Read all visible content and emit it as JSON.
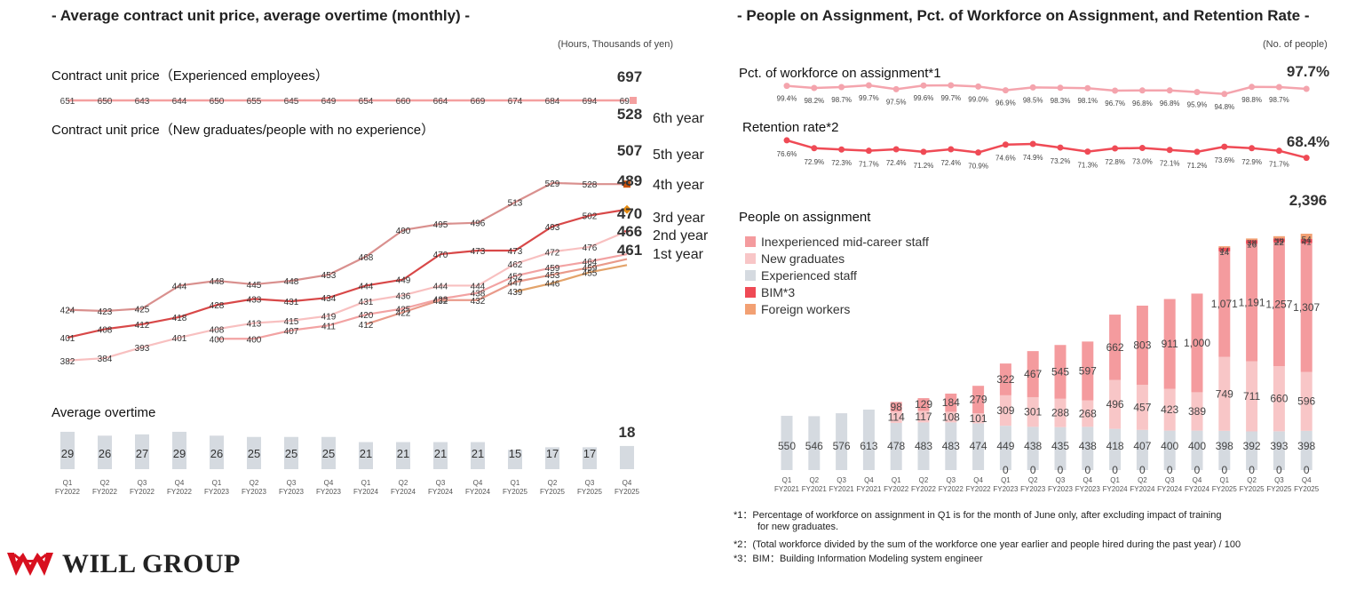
{
  "left": {
    "title": "- Average contract unit price, average overtime (monthly) -",
    "unit": "(Hours, Thousands of yen)",
    "experienced_label": "Contract unit price（Experienced employees）",
    "newgrad_label": "Contract unit price（New graduates/people with no experience）",
    "overtime_label": "Average overtime"
  },
  "right": {
    "title": "- People on Assignment, Pct. of Workforce on Assignment, and Retention Rate -",
    "unit": "(No. of people)",
    "pct_label": "Pct. of workforce on assignment*1",
    "retention_label": "Retention rate*2",
    "people_label": "People on assignment"
  },
  "notes": [
    "*1：Percentage of workforce on assignment in Q1 is for the month of June only, after excluding impact of training",
    "for new graduates.",
    "*2：(Total workforce divided by the sum of the workforce one year earlier and people hired during the past year) / 100",
    "*3：BIM：Building Information Modeling system engineer"
  ],
  "logo": {
    "text": "WILL GROUP",
    "icon": "will-group-emblem-icon"
  },
  "colors": {
    "experienced": "#f4a0a0",
    "year6": "#d9908e",
    "year5": "#d84848",
    "year4": "#f8c0c0",
    "year3": "#f2a2a2",
    "year2": "#e99a8a",
    "year1": "#e3a36a",
    "overtime": "#d5dae0",
    "pct": "#f4a4ad",
    "retention": "#ef4a55",
    "inexperienced_mid": "#f49b9e",
    "new_grads": "#f8c6c7",
    "experienced_staff": "#d5dae0",
    "bim": "#ef4a55",
    "foreign": "#f2a073",
    "logo": "#d8101f"
  },
  "chart_data": [
    {
      "type": "line",
      "id": "contract-unit-price",
      "categories": [
        "Q1\nFY2022",
        "Q2\nFY2022",
        "Q3\nFY2022",
        "Q4\nFY2022",
        "Q1\nFY2023",
        "Q2\nFY2023",
        "Q3\nFY2023",
        "Q4\nFY2023",
        "Q1\nFY2024",
        "Q2\nFY2024",
        "Q3\nFY2024",
        "Q4\nFY2024",
        "Q1\nFY2025",
        "Q2\nFY2025",
        "Q3\nFY2025",
        "Q4\nFY2025"
      ],
      "series": [
        {
          "name": "6th year",
          "values": [
            424,
            423,
            425,
            444,
            448,
            445,
            448,
            453,
            468,
            490,
            495,
            496,
            513,
            529,
            528,
            528
          ]
        },
        {
          "name": "5th year",
          "values": [
            401,
            408,
            412,
            418,
            428,
            433,
            431,
            434,
            444,
            449,
            470,
            473,
            473,
            493,
            502,
            507
          ]
        },
        {
          "name": "4th year",
          "values": [
            382,
            384,
            393,
            401,
            408,
            413,
            415,
            419,
            431,
            436,
            444,
            444,
            462,
            472,
            476,
            489
          ]
        },
        {
          "name": "3rd year",
          "values": [
            null,
            null,
            null,
            null,
            400,
            400,
            407,
            411,
            420,
            425,
            433,
            438,
            452,
            459,
            464,
            470
          ]
        },
        {
          "name": "2nd year",
          "values": [
            null,
            null,
            null,
            null,
            null,
            null,
            null,
            null,
            412,
            422,
            432,
            432,
            447,
            453,
            459,
            466
          ]
        },
        {
          "name": "1st year",
          "values": [
            null,
            null,
            null,
            null,
            null,
            null,
            null,
            null,
            null,
            null,
            null,
            null,
            439,
            446,
            455,
            461
          ]
        }
      ],
      "experienced": {
        "values": [
          651,
          650,
          643,
          644,
          650,
          655,
          645,
          649,
          654,
          660,
          664,
          669,
          674,
          684,
          694,
          697
        ]
      },
      "last_labels": [
        "697",
        "528",
        "507",
        "489",
        "470",
        "466",
        "461"
      ]
    },
    {
      "type": "bar",
      "id": "average-overtime",
      "values": [
        29,
        26,
        27,
        29,
        26,
        25,
        25,
        25,
        21,
        21,
        21,
        21,
        15,
        17,
        17,
        18
      ]
    },
    {
      "type": "line",
      "id": "pct-workforce-on-assignment",
      "values": [
        99.4,
        98.2,
        98.7,
        99.7,
        97.5,
        99.6,
        99.7,
        99.0,
        96.9,
        98.5,
        98.3,
        98.1,
        96.7,
        96.8,
        96.8,
        95.9,
        94.8,
        98.8,
        98.7,
        97.7
      ],
      "labels": [
        "99.4%",
        "98.2%",
        "98.7%",
        "99.7%",
        "97.5%",
        "99.6%",
        "99.7%",
        "99.0%",
        "96.9%",
        "98.5%",
        "98.3%",
        "98.1%",
        "96.7%",
        "96.8%",
        "96.8%",
        "95.9%",
        "94.8%",
        "98.8%",
        "98.7%",
        "97.7%"
      ]
    },
    {
      "type": "line",
      "id": "retention-rate",
      "values": [
        76.6,
        72.9,
        72.3,
        71.7,
        72.4,
        71.2,
        72.4,
        70.9,
        74.6,
        74.9,
        73.2,
        71.3,
        72.8,
        73.0,
        72.1,
        71.2,
        73.6,
        72.9,
        71.7,
        68.4
      ],
      "labels": [
        "76.6%",
        "72.9%",
        "72.3%",
        "71.7%",
        "72.4%",
        "71.2%",
        "72.4%",
        "70.9%",
        "74.6%",
        "74.9%",
        "73.2%",
        "71.3%",
        "72.8%",
        "73.0%",
        "72.1%",
        "71.2%",
        "73.6%",
        "72.9%",
        "71.7%",
        "68.4%"
      ]
    },
    {
      "type": "bar",
      "id": "people-on-assignment",
      "stacked": true,
      "categories": [
        "Q1\nFY2021",
        "Q2\nFY2021",
        "Q3\nFY2021",
        "Q4\nFY2021",
        "Q1\nFY2022",
        "Q2\nFY2022",
        "Q3\nFY2022",
        "Q4\nFY2022",
        "Q1\nFY2023",
        "Q2\nFY2023",
        "Q3\nFY2023",
        "Q4\nFY2023",
        "Q1\nFY2024",
        "Q2\nFY2024",
        "Q3\nFY2024",
        "Q4\nFY2024",
        "Q1\nFY2025",
        "Q2\nFY2025",
        "Q3\nFY2025",
        "Q4\nFY2025"
      ],
      "series": [
        {
          "name": "Experienced staff",
          "values": [
            550,
            546,
            576,
            613,
            478,
            483,
            483,
            474,
            449,
            438,
            435,
            438,
            418,
            407,
            400,
            400,
            398,
            392,
            393,
            398
          ]
        },
        {
          "name": "Foreign workers",
          "values": [
            null,
            null,
            null,
            null,
            null,
            null,
            null,
            null,
            0,
            0,
            0,
            0,
            0,
            0,
            0,
            0,
            0,
            0,
            0,
            0
          ]
        },
        {
          "name": "New graduates",
          "values": [
            null,
            null,
            null,
            null,
            114,
            117,
            108,
            101,
            309,
            301,
            288,
            268,
            496,
            457,
            423,
            389,
            749,
            711,
            660,
            596
          ]
        },
        {
          "name": "Inexperienced mid-career staff",
          "values": [
            null,
            null,
            null,
            null,
            98,
            129,
            184,
            279,
            322,
            467,
            545,
            597,
            662,
            803,
            911,
            1000,
            1071,
            1191,
            1257,
            1307
          ]
        },
        {
          "name": "BIM*3",
          "values": [
            null,
            null,
            null,
            null,
            null,
            null,
            null,
            null,
            null,
            null,
            null,
            null,
            null,
            null,
            null,
            null,
            37,
            38,
            39,
            41
          ]
        },
        {
          "name": "Foreign workers (top)",
          "values": [
            null,
            null,
            null,
            null,
            null,
            null,
            null,
            null,
            null,
            null,
            null,
            null,
            null,
            null,
            null,
            null,
            14,
            16,
            22,
            54
          ]
        }
      ],
      "labels": {
        "Experienced staff": [
          "550",
          "546",
          "576",
          "613",
          "478",
          "483",
          "483",
          "474",
          "449",
          "438",
          "435",
          "438",
          "418",
          "407",
          "400",
          "400",
          "398",
          "392",
          "393",
          "398"
        ],
        "Foreign workers": [
          "",
          "",
          "",
          "",
          "",
          "",
          "",
          "",
          "0",
          "0",
          "0",
          "0",
          "0",
          "0",
          "0",
          "0",
          "0",
          "0",
          "0",
          "0"
        ],
        "New graduates": [
          "",
          "",
          "",
          "",
          "114",
          "117",
          "108",
          "101",
          "309",
          "301",
          "288",
          "268",
          "496",
          "457",
          "423",
          "389",
          "749",
          "711",
          "660",
          "596"
        ],
        "Inexperienced mid-career staff": [
          "",
          "",
          "",
          "",
          "98",
          "129",
          "184",
          "279",
          "322",
          "467",
          "545",
          "597",
          "662",
          "803",
          "911",
          "1,000",
          "1,071",
          "1,191",
          "1,257",
          "1,307"
        ],
        "BIM*3": [
          "",
          "",
          "",
          "",
          "",
          "",
          "",
          "",
          "",
          "",
          "",
          "",
          "",
          "",
          "",
          "",
          "37",
          "38",
          "39",
          "41"
        ],
        "Foreign workers (top)": [
          "",
          "",
          "",
          "",
          "",
          "",
          "",
          "",
          "",
          "",
          "",
          "",
          "",
          "",
          "",
          "",
          "14",
          "16",
          "22",
          "54"
        ]
      },
      "total_label": "2,396",
      "legend": [
        "Inexperienced mid-career staff",
        "New graduates",
        "Experienced staff",
        "BIM*3",
        "Foreign workers"
      ]
    }
  ]
}
